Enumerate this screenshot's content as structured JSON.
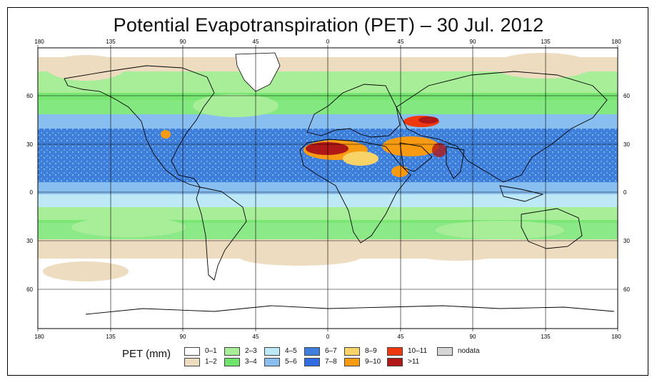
{
  "title": "Potential Evapotranspiration (PET) – 30 Jul. 2012",
  "legend": {
    "label": "PET (mm)",
    "items": [
      {
        "label": "0–1",
        "color": "#ffffff"
      },
      {
        "label": "1–2",
        "color": "#eedcc0"
      },
      {
        "label": "2–3",
        "color": "#a8ee98"
      },
      {
        "label": "3–4",
        "color": "#6ee46a"
      },
      {
        "label": "4–5",
        "color": "#bde8f6"
      },
      {
        "label": "5–6",
        "color": "#88bff0"
      },
      {
        "label": "6–7",
        "color": "#3f7fdc"
      },
      {
        "label": "7–8",
        "color": "#2f6ce4"
      },
      {
        "label": "8–9",
        "color": "#f8d468"
      },
      {
        "label": "9–10",
        "color": "#f89a12"
      },
      {
        "label": "10–11",
        "color": "#f0380e"
      },
      {
        "label": ">11",
        "color": "#b01818"
      },
      {
        "label": "nodata",
        "color": "#d6d6d6"
      }
    ]
  },
  "axes": {
    "lon_top": [
      "180",
      "135",
      "90",
      "45",
      "0",
      "45",
      "90",
      "135",
      "180"
    ],
    "lon_bottom": [
      "180",
      "135",
      "90",
      "45",
      "0",
      "45",
      "90",
      "135",
      "180"
    ],
    "lat_left": [
      "60",
      "30",
      "0",
      "30",
      "60"
    ],
    "lat_right": [
      "60",
      "30",
      "0",
      "30",
      "60"
    ]
  },
  "zone_colors": {
    "ocean_blue": "#3f7fdc",
    "sahara_hot": "#b01818",
    "desert_orange": "#f89a12"
  }
}
